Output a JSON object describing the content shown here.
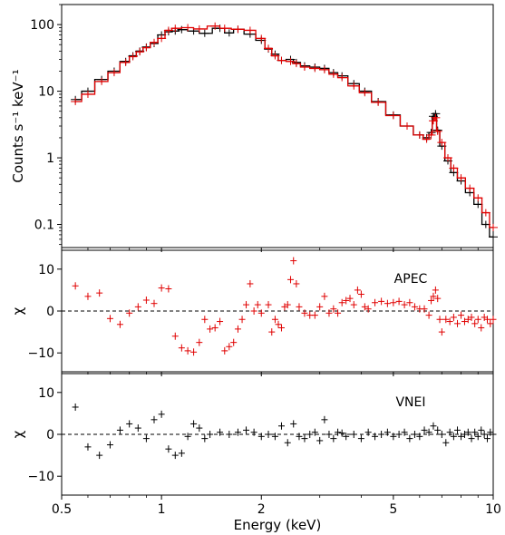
{
  "chart_data": [
    {
      "panel": "spectrum",
      "type": "line",
      "ylabel": "Counts s⁻¹ keV⁻¹",
      "ylim": [
        0.045,
        200
      ],
      "yscale": "log",
      "yticks": [
        {
          "v": 100,
          "label": "100"
        },
        {
          "v": 10,
          "label": "10"
        },
        {
          "v": 1,
          "label": "1"
        },
        {
          "v": 0.1,
          "label": "0.1"
        }
      ],
      "series": [
        {
          "color": "#000000",
          "points": [
            [
              0.55,
              7.5
            ],
            [
              0.6,
              10
            ],
            [
              0.66,
              15
            ],
            [
              0.72,
              20
            ],
            [
              0.78,
              28
            ],
            [
              0.82,
              34
            ],
            [
              0.86,
              40
            ],
            [
              0.9,
              46
            ],
            [
              0.95,
              52
            ],
            [
              1.0,
              70
            ],
            [
              1.05,
              78
            ],
            [
              1.1,
              80
            ],
            [
              1.15,
              84
            ],
            [
              1.25,
              80
            ],
            [
              1.35,
              74
            ],
            [
              1.5,
              88
            ],
            [
              1.6,
              75
            ],
            [
              1.7,
              85
            ],
            [
              1.85,
              72
            ],
            [
              2.0,
              58
            ],
            [
              2.1,
              43
            ],
            [
              2.2,
              36
            ],
            [
              2.3,
              29
            ],
            [
              2.45,
              30
            ],
            [
              2.55,
              27
            ],
            [
              2.7,
              24
            ],
            [
              2.9,
              23
            ],
            [
              3.1,
              22
            ],
            [
              3.3,
              19
            ],
            [
              3.5,
              17
            ],
            [
              3.8,
              13
            ],
            [
              4.1,
              10
            ],
            [
              4.5,
              7
            ],
            [
              5.0,
              4.4
            ],
            [
              5.5,
              3.0
            ],
            [
              6.0,
              2.2
            ],
            [
              6.3,
              2.0
            ],
            [
              6.5,
              2.4
            ],
            [
              6.6,
              4.2
            ],
            [
              6.7,
              4.6
            ],
            [
              6.8,
              2.6
            ],
            [
              7.0,
              1.5
            ],
            [
              7.3,
              0.9
            ],
            [
              7.6,
              0.6
            ],
            [
              8.0,
              0.45
            ],
            [
              8.5,
              0.3
            ],
            [
              9.0,
              0.2
            ],
            [
              9.5,
              0.1
            ],
            [
              10.0,
              0.065
            ]
          ]
        },
        {
          "color": "#e00000",
          "points": [
            [
              0.55,
              7.0
            ],
            [
              0.6,
              9.0
            ],
            [
              0.66,
              14
            ],
            [
              0.72,
              19
            ],
            [
              0.78,
              27
            ],
            [
              0.82,
              33
            ],
            [
              0.86,
              39
            ],
            [
              0.9,
              45
            ],
            [
              0.95,
              54
            ],
            [
              1.0,
              62
            ],
            [
              1.05,
              82
            ],
            [
              1.1,
              88
            ],
            [
              1.2,
              90
            ],
            [
              1.3,
              86
            ],
            [
              1.45,
              95
            ],
            [
              1.55,
              88
            ],
            [
              1.7,
              85
            ],
            [
              1.85,
              82
            ],
            [
              2.0,
              62
            ],
            [
              2.1,
              44
            ],
            [
              2.2,
              34
            ],
            [
              2.3,
              29
            ],
            [
              2.45,
              28
            ],
            [
              2.55,
              26
            ],
            [
              2.7,
              23
            ],
            [
              2.9,
              22
            ],
            [
              3.1,
              21
            ],
            [
              3.3,
              18
            ],
            [
              3.5,
              16
            ],
            [
              3.8,
              12
            ],
            [
              4.1,
              9.5
            ],
            [
              4.5,
              6.8
            ],
            [
              5.0,
              4.3
            ],
            [
              5.5,
              3.0
            ],
            [
              6.0,
              2.2
            ],
            [
              6.3,
              1.9
            ],
            [
              6.5,
              2.2
            ],
            [
              6.6,
              3.6
            ],
            [
              6.7,
              4.0
            ],
            [
              6.8,
              2.5
            ],
            [
              7.0,
              1.7
            ],
            [
              7.3,
              1.0
            ],
            [
              7.6,
              0.7
            ],
            [
              8.0,
              0.5
            ],
            [
              8.5,
              0.35
            ],
            [
              9.0,
              0.25
            ],
            [
              9.5,
              0.15
            ],
            [
              10.0,
              0.09
            ]
          ]
        }
      ]
    },
    {
      "panel": "residuals-apec",
      "type": "scatter",
      "label": "APEC",
      "ylabel": "χ",
      "ylim": [
        -14.5,
        14.5
      ],
      "yticks": [
        {
          "v": 10,
          "label": "10"
        },
        {
          "v": 0,
          "label": "0"
        },
        {
          "v": -10,
          "label": "−10"
        }
      ],
      "color": "#e00000",
      "points": [
        [
          0.55,
          6
        ],
        [
          0.6,
          3.5
        ],
        [
          0.65,
          4.3
        ],
        [
          0.7,
          -1.8
        ],
        [
          0.75,
          -3.2
        ],
        [
          0.8,
          -0.5
        ],
        [
          0.85,
          1
        ],
        [
          0.9,
          2.6
        ],
        [
          0.95,
          1.8
        ],
        [
          1.0,
          5.5
        ],
        [
          1.05,
          5.3
        ],
        [
          1.1,
          -6
        ],
        [
          1.15,
          -8.8
        ],
        [
          1.2,
          -9.5
        ],
        [
          1.25,
          -9.8
        ],
        [
          1.3,
          -7.5
        ],
        [
          1.35,
          -2
        ],
        [
          1.4,
          -4.3
        ],
        [
          1.45,
          -4
        ],
        [
          1.5,
          -2.5
        ],
        [
          1.55,
          -9.5
        ],
        [
          1.6,
          -8.5
        ],
        [
          1.65,
          -7.5
        ],
        [
          1.7,
          -4.3
        ],
        [
          1.75,
          -2
        ],
        [
          1.8,
          1.5
        ],
        [
          1.85,
          6.5
        ],
        [
          1.9,
          0
        ],
        [
          1.95,
          1.5
        ],
        [
          2.0,
          -0.5
        ],
        [
          2.1,
          1.5
        ],
        [
          2.15,
          -5
        ],
        [
          2.2,
          -2
        ],
        [
          2.25,
          -3.2
        ],
        [
          2.3,
          -4
        ],
        [
          2.35,
          1
        ],
        [
          2.4,
          1.5
        ],
        [
          2.45,
          7.5
        ],
        [
          2.5,
          12
        ],
        [
          2.55,
          6.5
        ],
        [
          2.6,
          1
        ],
        [
          2.7,
          -0.5
        ],
        [
          2.8,
          -1
        ],
        [
          2.9,
          -1
        ],
        [
          3.0,
          1
        ],
        [
          3.1,
          3.5
        ],
        [
          3.2,
          -0.5
        ],
        [
          3.3,
          0.5
        ],
        [
          3.4,
          -0.5
        ],
        [
          3.5,
          2
        ],
        [
          3.6,
          2.5
        ],
        [
          3.7,
          3
        ],
        [
          3.8,
          1.5
        ],
        [
          3.9,
          5
        ],
        [
          4.0,
          4
        ],
        [
          4.1,
          1
        ],
        [
          4.2,
          0.5
        ],
        [
          4.4,
          2
        ],
        [
          4.6,
          2.3
        ],
        [
          4.8,
          1.8
        ],
        [
          5.0,
          2
        ],
        [
          5.2,
          2.3
        ],
        [
          5.4,
          1.5
        ],
        [
          5.6,
          2
        ],
        [
          5.8,
          1
        ],
        [
          6.0,
          0.5
        ],
        [
          6.2,
          0.5
        ],
        [
          6.4,
          -1
        ],
        [
          6.5,
          2.5
        ],
        [
          6.6,
          3.5
        ],
        [
          6.7,
          5
        ],
        [
          6.8,
          3
        ],
        [
          6.9,
          -2
        ],
        [
          7.0,
          -5
        ],
        [
          7.2,
          -2
        ],
        [
          7.4,
          -2.5
        ],
        [
          7.6,
          -1.5
        ],
        [
          7.8,
          -3
        ],
        [
          8.0,
          -1
        ],
        [
          8.2,
          -2.5
        ],
        [
          8.4,
          -2
        ],
        [
          8.6,
          -1.5
        ],
        [
          8.8,
          -3
        ],
        [
          9.0,
          -2
        ],
        [
          9.2,
          -4
        ],
        [
          9.4,
          -1.5
        ],
        [
          9.6,
          -2
        ],
        [
          9.8,
          -3
        ],
        [
          10.0,
          -2
        ]
      ]
    },
    {
      "panel": "residuals-vnei",
      "type": "scatter",
      "label": "VNEI",
      "ylabel": "χ",
      "ylim": [
        -14.5,
        14.5
      ],
      "yticks": [
        {
          "v": 10,
          "label": "10"
        },
        {
          "v": 0,
          "label": "0"
        },
        {
          "v": -10,
          "label": "−10"
        }
      ],
      "color": "#000000",
      "xlabel": "Energy (keV)",
      "xscale": "log",
      "xlim": [
        0.5,
        10
      ],
      "xticks": [
        {
          "v": 0.5,
          "label": "0.5"
        },
        {
          "v": 1,
          "label": "1"
        },
        {
          "v": 2,
          "label": "2"
        },
        {
          "v": 5,
          "label": "5"
        },
        {
          "v": 10,
          "label": "10"
        }
      ],
      "points": [
        [
          0.55,
          6.5
        ],
        [
          0.6,
          -3
        ],
        [
          0.65,
          -5
        ],
        [
          0.7,
          -2.5
        ],
        [
          0.75,
          1
        ],
        [
          0.8,
          2.5
        ],
        [
          0.85,
          1.5
        ],
        [
          0.9,
          -1
        ],
        [
          0.95,
          3.5
        ],
        [
          1.0,
          4.8
        ],
        [
          1.05,
          -3.5
        ],
        [
          1.1,
          -5
        ],
        [
          1.15,
          -4.5
        ],
        [
          1.2,
          -0.5
        ],
        [
          1.25,
          2.5
        ],
        [
          1.3,
          1.5
        ],
        [
          1.35,
          -1
        ],
        [
          1.4,
          0
        ],
        [
          1.5,
          0.5
        ],
        [
          1.6,
          0
        ],
        [
          1.7,
          0.5
        ],
        [
          1.8,
          1
        ],
        [
          1.9,
          0.5
        ],
        [
          2.0,
          -0.5
        ],
        [
          2.1,
          0
        ],
        [
          2.2,
          -0.5
        ],
        [
          2.3,
          2
        ],
        [
          2.4,
          -2
        ],
        [
          2.5,
          2.5
        ],
        [
          2.6,
          -0.5
        ],
        [
          2.7,
          -1
        ],
        [
          2.8,
          0
        ],
        [
          2.9,
          0.5
        ],
        [
          3.0,
          -1.5
        ],
        [
          3.1,
          3.5
        ],
        [
          3.2,
          0
        ],
        [
          3.3,
          -1
        ],
        [
          3.4,
          0.5
        ],
        [
          3.5,
          0.3
        ],
        [
          3.6,
          -0.5
        ],
        [
          3.8,
          0
        ],
        [
          4.0,
          -1
        ],
        [
          4.2,
          0.5
        ],
        [
          4.4,
          -0.5
        ],
        [
          4.6,
          0
        ],
        [
          4.8,
          0.5
        ],
        [
          5.0,
          -0.5
        ],
        [
          5.2,
          0
        ],
        [
          5.4,
          0.5
        ],
        [
          5.6,
          -1
        ],
        [
          5.8,
          0
        ],
        [
          6.0,
          -0.5
        ],
        [
          6.2,
          1
        ],
        [
          6.4,
          0.5
        ],
        [
          6.6,
          2
        ],
        [
          6.8,
          1
        ],
        [
          7.0,
          0
        ],
        [
          7.2,
          -2
        ],
        [
          7.4,
          0.5
        ],
        [
          7.6,
          -0.5
        ],
        [
          7.8,
          1
        ],
        [
          8.0,
          -0.5
        ],
        [
          8.2,
          0
        ],
        [
          8.4,
          0.5
        ],
        [
          8.6,
          -1
        ],
        [
          8.8,
          0.5
        ],
        [
          9.0,
          -0.5
        ],
        [
          9.2,
          1
        ],
        [
          9.4,
          0
        ],
        [
          9.6,
          -1
        ],
        [
          9.8,
          0.5
        ],
        [
          10.0,
          0
        ]
      ]
    }
  ]
}
